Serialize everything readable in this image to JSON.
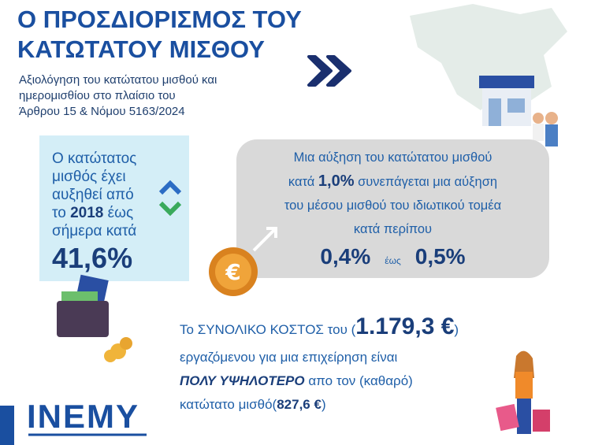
{
  "header": {
    "title": [
      "Ο ΠΡΟΣΔΙΟΡΙΣΜΟΣ ΤΟΥ",
      "ΚΑΤΩΤΑΤΟΥ ΜΙΣΘΟΥ"
    ],
    "subtitle": [
      "Αξιολόγηση του κατώτατου μισθού και",
      "ημερομισθίου στο πλαίσιο του",
      "Άρθρου 15 & Νόμου 5163/2024"
    ]
  },
  "left_box": {
    "lines": [
      "Ο κατώτατος",
      "μισθός έχει",
      "αυξηθεί από"
    ],
    "line4": {
      "before": "το ",
      "year": "2018",
      "after": " έως"
    },
    "line5": "σήμερα κατά",
    "value": "41,6%"
  },
  "right_box": {
    "line1": "Μια αύξηση του κατώτατου μισθού",
    "line2": {
      "before": "κατά ",
      "value": "1,0%",
      "after": " συνεπάγεται μια αύξηση"
    },
    "line3": "του μέσου μισθού του ιδιωτικού τομέα",
    "line4": "κατά περίπου",
    "range": {
      "low": "0,4%",
      "to": "έως",
      "high": "0,5%"
    }
  },
  "bottom": {
    "line1": {
      "before": "Το ΣΥΝΟΛΙΚΟ ΚΟΣΤΟΣ του (",
      "value": "1.179,3 €",
      "after": ")"
    },
    "line2": "εργαζόμενου για μια επιχείρηση είναι",
    "line3": {
      "bold": "ΠΟΛΥ ΥΨΗΛΟΤΕΡΟ",
      "after": " απο τον (καθαρό)"
    },
    "line4": {
      "before": "κατώτατο μισθό(",
      "value": "827,6 €",
      "after": ")"
    }
  },
  "logo": "INEMY"
}
